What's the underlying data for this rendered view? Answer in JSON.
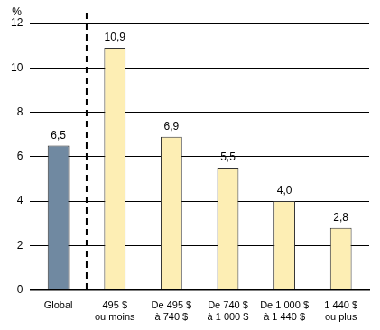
{
  "chart_data": {
    "type": "bar",
    "ylabel": "%",
    "categories": [
      "Global",
      [
        "495 $",
        "ou moins"
      ],
      [
        "De 495 $",
        "à 740 $"
      ],
      [
        "De 740 $",
        "à 1 000 $"
      ],
      [
        "De 1 000 $",
        "à 1 440 $"
      ],
      [
        "1 440 $",
        "ou plus"
      ]
    ],
    "values": [
      6.5,
      10.9,
      6.9,
      5.5,
      4.0,
      2.8
    ],
    "value_labels": [
      "6,5",
      "10,9",
      "6,9",
      "5,5",
      "4,0",
      "2,8"
    ],
    "data_labels": true,
    "colors": [
      "#7089a1",
      "#fdeeb4",
      "#fdeeb4",
      "#fdeeb4",
      "#fdeeb4",
      "#fdeeb4"
    ],
    "ylim": [
      0,
      12
    ],
    "yticks": [
      0,
      2,
      4,
      6,
      8,
      10,
      12
    ],
    "grid": true
  }
}
